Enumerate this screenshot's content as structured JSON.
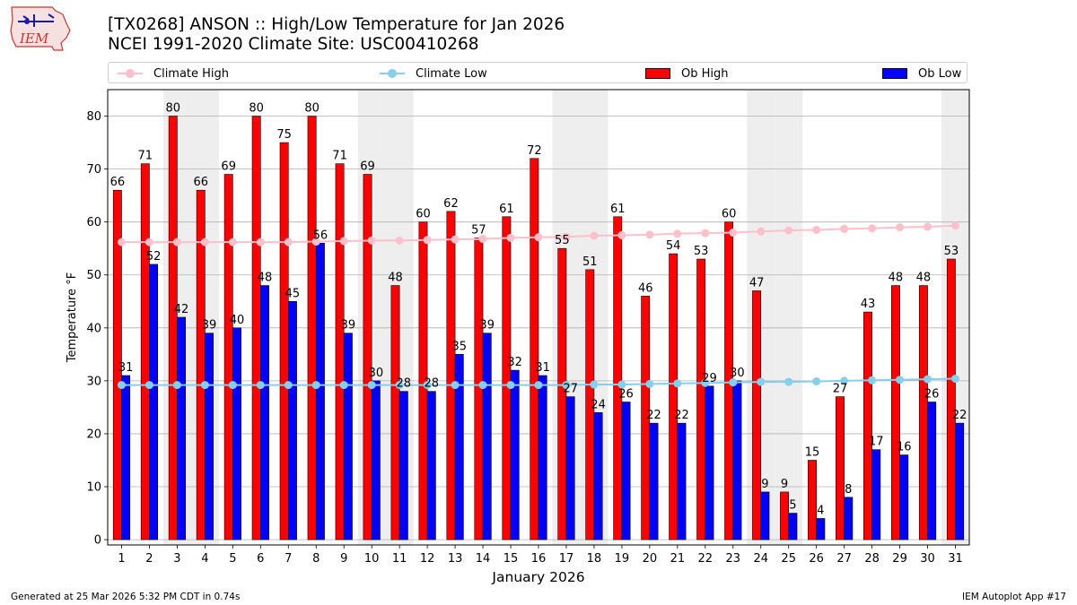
{
  "logo": {
    "text": "IEM"
  },
  "title": {
    "line1": "[TX0268] ANSON :: High/Low Temperature for Jan 2026",
    "line2": "NCEI 1991-2020 Climate Site: USC00410268"
  },
  "legend": {
    "items": [
      {
        "label": "Climate High",
        "kind": "line",
        "color": "#ffc0cb"
      },
      {
        "label": "Climate Low",
        "kind": "line",
        "color": "#87ceeb"
      },
      {
        "label": "Ob High",
        "kind": "box",
        "color": "#ff0000"
      },
      {
        "label": "Ob Low",
        "kind": "box",
        "color": "#0000ff"
      }
    ]
  },
  "footer": {
    "left": "Generated at 25 Mar 2026 5:32 PM CDT in 0.74s",
    "right": "IEM Autoplot App #17"
  },
  "chart_data": {
    "type": "bar",
    "xlabel": "January 2026",
    "ylabel": "Temperature °F",
    "xlim": [
      0.5,
      31.5
    ],
    "ylim": [
      -1,
      85
    ],
    "yticks": [
      0,
      10,
      20,
      30,
      40,
      50,
      60,
      70,
      80
    ],
    "grid": true,
    "legend_position": "top",
    "weekend_shading_days": [
      3,
      4,
      10,
      11,
      17,
      18,
      24,
      25,
      31
    ],
    "categories": [
      "1",
      "2",
      "3",
      "4",
      "5",
      "6",
      "7",
      "8",
      "9",
      "10",
      "11",
      "12",
      "13",
      "14",
      "15",
      "16",
      "17",
      "18",
      "19",
      "20",
      "21",
      "22",
      "23",
      "24",
      "25",
      "26",
      "27",
      "28",
      "29",
      "30",
      "31"
    ],
    "series": [
      {
        "name": "Ob High",
        "kind": "bar",
        "color": "#ff0000",
        "values": [
          66,
          71,
          80,
          66,
          69,
          80,
          75,
          80,
          71,
          69,
          48,
          60,
          62,
          57,
          61,
          72,
          55,
          51,
          61,
          46,
          54,
          53,
          60,
          47,
          9,
          15,
          27,
          43,
          48,
          48,
          53
        ]
      },
      {
        "name": "Ob Low",
        "kind": "bar",
        "color": "#0000ff",
        "values": [
          31,
          52,
          42,
          39,
          40,
          48,
          45,
          56,
          39,
          30,
          28,
          28,
          35,
          39,
          32,
          31,
          27,
          24,
          26,
          22,
          22,
          29,
          30,
          9,
          5,
          4,
          8,
          17,
          16,
          26,
          22
        ]
      },
      {
        "name": "Climate High",
        "kind": "line",
        "color": "#ffc0cb",
        "values": [
          56.2,
          56.2,
          56.2,
          56.2,
          56.2,
          56.2,
          56.2,
          56.3,
          56.4,
          56.5,
          56.5,
          56.6,
          56.7,
          56.8,
          57.0,
          57.1,
          57.2,
          57.4,
          57.5,
          57.6,
          57.8,
          57.9,
          58.0,
          58.2,
          58.4,
          58.5,
          58.7,
          58.8,
          59.0,
          59.1,
          59.3
        ]
      },
      {
        "name": "Climate Low",
        "kind": "line",
        "color": "#87ceeb",
        "values": [
          29.2,
          29.2,
          29.2,
          29.2,
          29.2,
          29.2,
          29.2,
          29.2,
          29.2,
          29.2,
          29.2,
          29.2,
          29.2,
          29.2,
          29.2,
          29.2,
          29.2,
          29.3,
          29.3,
          29.4,
          29.5,
          29.6,
          29.7,
          29.8,
          29.8,
          29.9,
          30.0,
          30.1,
          30.2,
          30.3,
          30.4
        ]
      }
    ]
  }
}
